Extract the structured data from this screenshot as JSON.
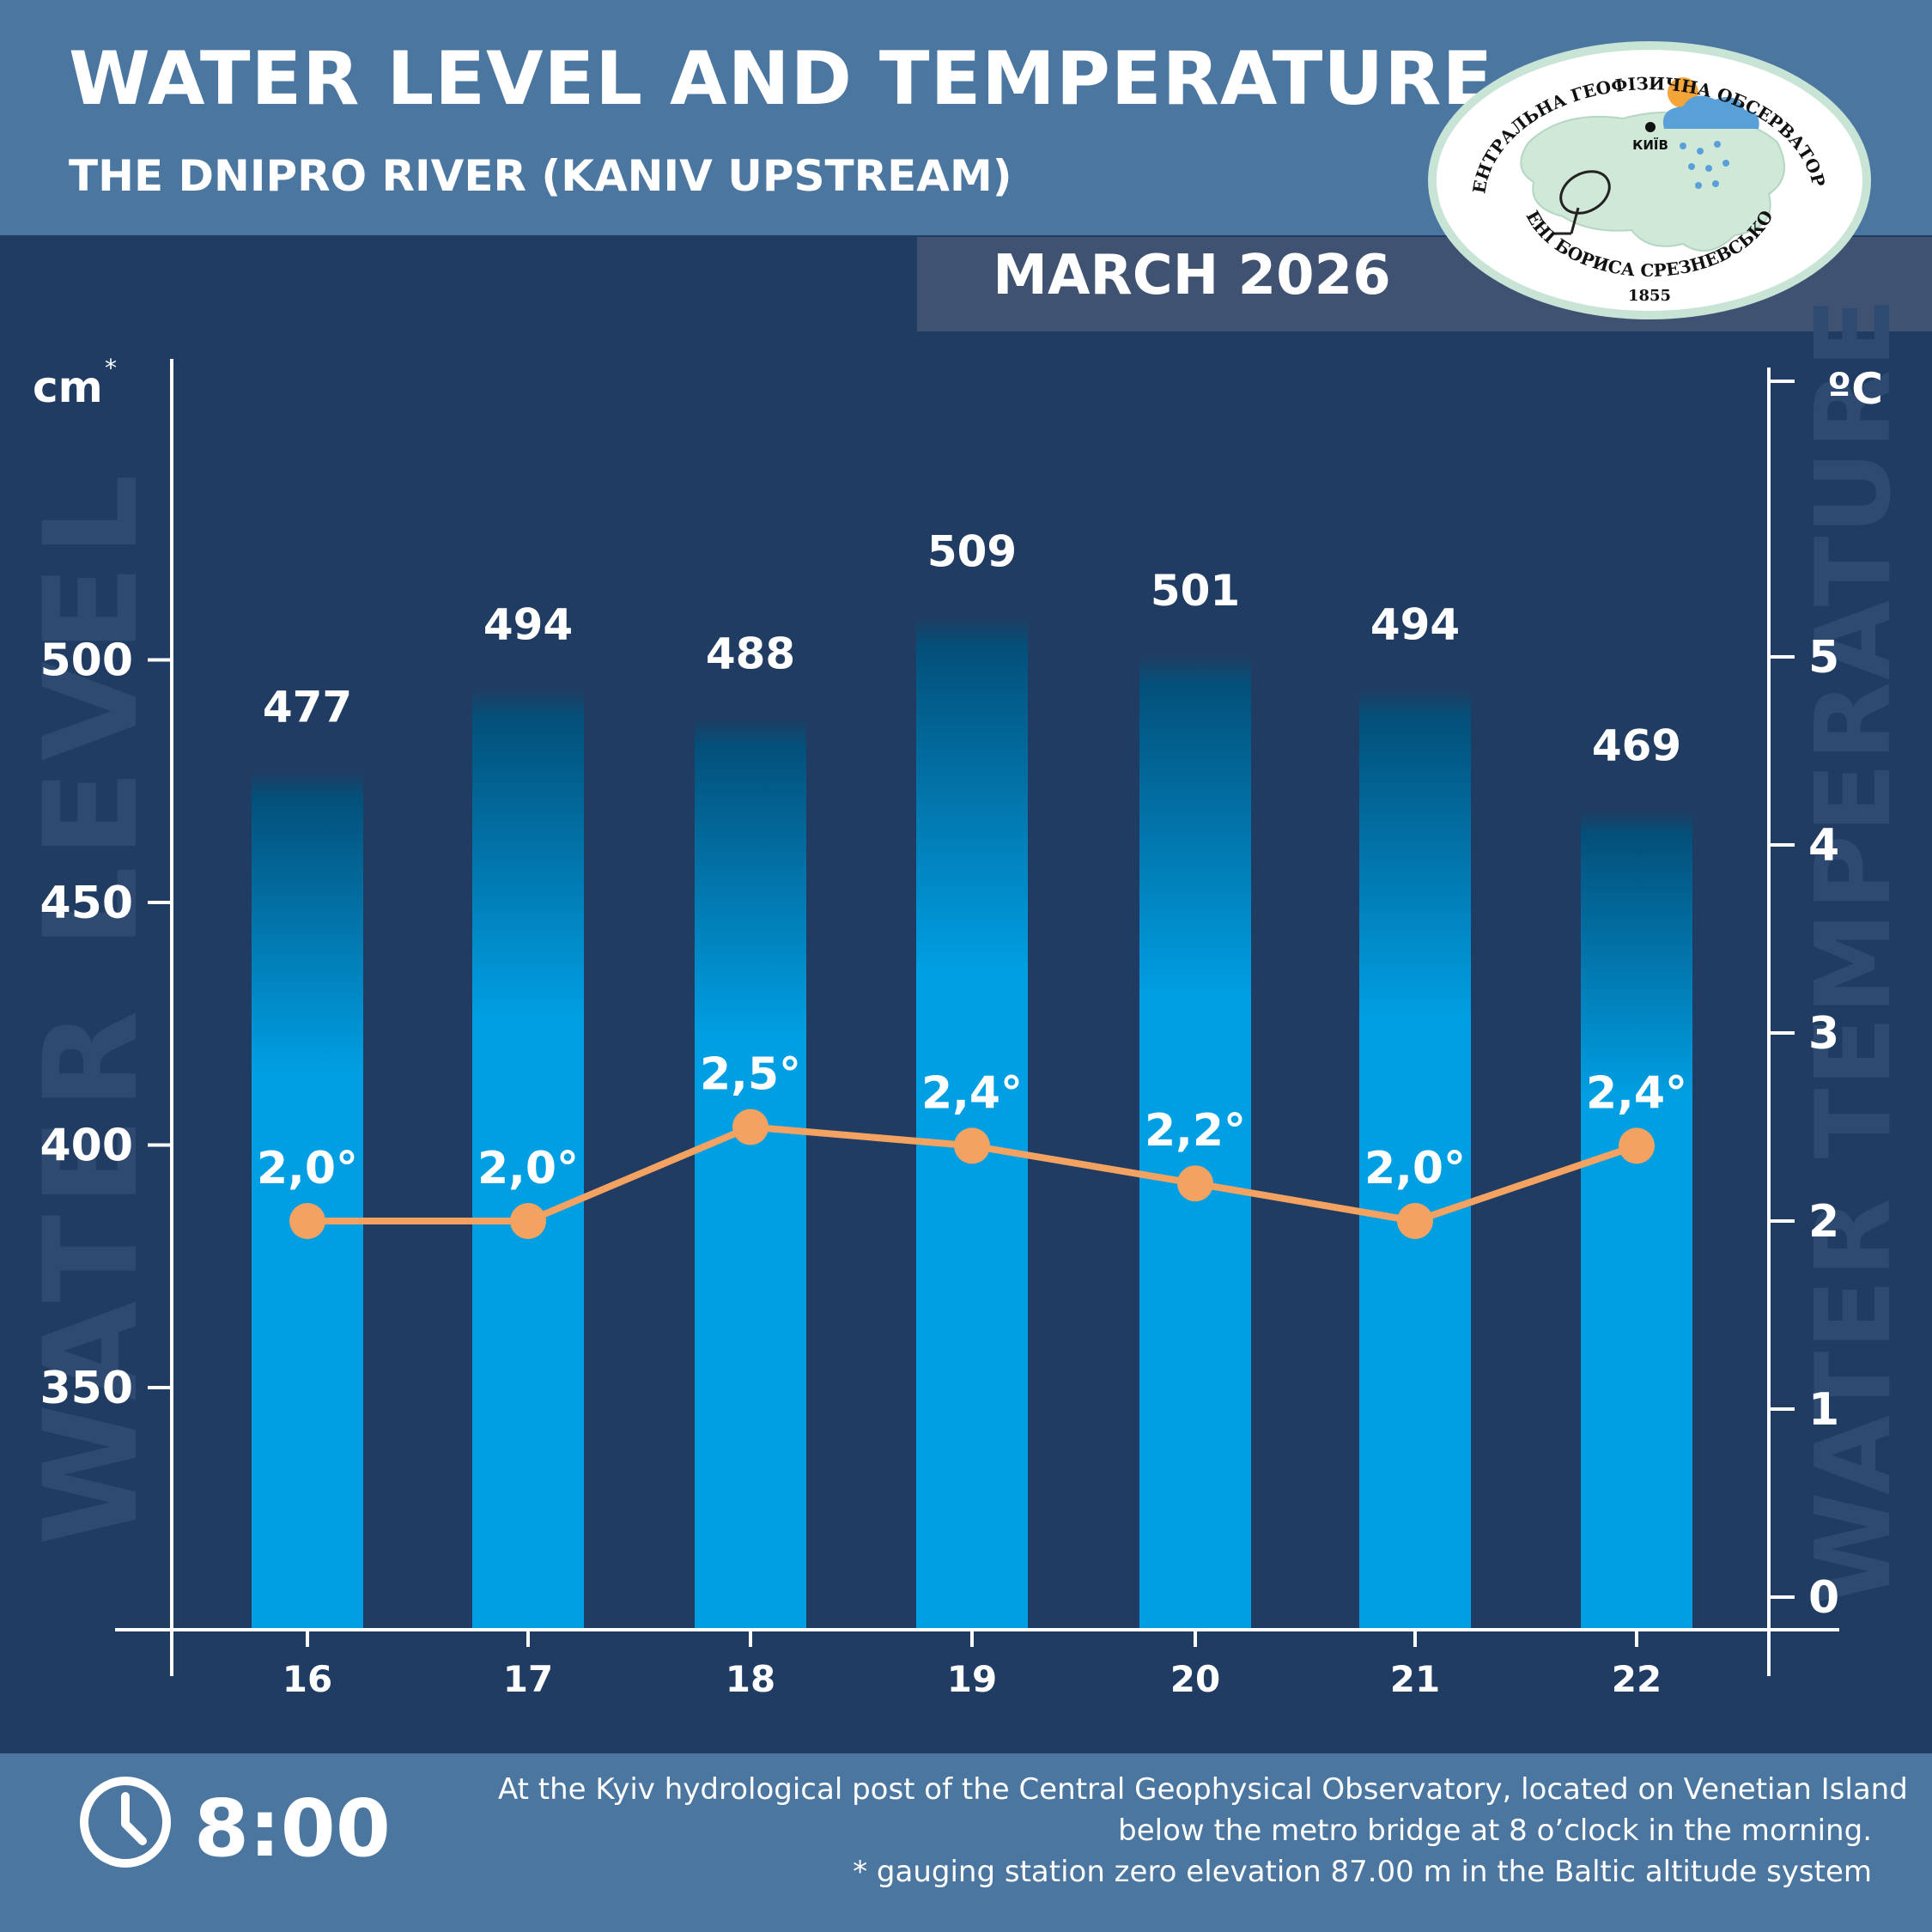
{
  "header": {
    "title": "WATER LEVEL AND TEMPERATURE",
    "subtitle": "THE DNIPRO RIVER (KANIV UPSTREAM)",
    "month": "MARCH 2026"
  },
  "logo": {
    "top_text": "ЦЕНТРАЛЬНА ГЕОФІЗИЧНА ОБСЕРВАТОРІЯ",
    "bottom_text": "ІМЕНІ БОРИСА СРЕЗНЕВСЬКОГО",
    "city": "КИЇВ",
    "year": "1855"
  },
  "footer": {
    "time": "8:00",
    "note_lines": [
      "At the Kyiv hydrological post of the Central Geophysical Observatory, located on Venetian Island",
      "below the metro bridge  at 8 o’clock in the morning.",
      "* gauging station zero elevation 87.00 m in the Baltic altitude system"
    ]
  },
  "colors": {
    "background": "#203c62",
    "header": "#4a76a0",
    "bar_top": "#03507a",
    "bar_bottom": "#009fe3",
    "line": "#f4a261",
    "axis": "#ffffff",
    "watermark": "#2e4a70"
  },
  "chart_data": {
    "type": "bar",
    "categories": [
      "16",
      "17",
      "18",
      "19",
      "20",
      "21",
      "22"
    ],
    "series": [
      {
        "values": [
          477,
          494,
          488,
          509,
          501,
          494,
          469
        ],
        "value_labels": [
          "477",
          "494",
          "488",
          "509",
          "501",
          "494",
          "469"
        ],
        "axis": "left"
      },
      {
        "type": "line",
        "values": [
          2.0,
          2.0,
          2.5,
          2.4,
          2.2,
          2.0,
          2.4
        ],
        "value_labels": [
          "2,0°",
          "2,0°",
          "2,5°",
          "2,4°",
          "2,2°",
          "2,0°",
          "2,4°"
        ],
        "axis": "right"
      }
    ],
    "left_axis": {
      "unit": "cm",
      "unit_mark": "*",
      "watermark": "WATER LEVEL",
      "ticks": [
        350,
        400,
        450,
        500
      ],
      "range": [
        300,
        500
      ]
    },
    "right_axis": {
      "unit": "ºC",
      "watermark": "WATER TEMPERATURE",
      "ticks": [
        0,
        1,
        2,
        3,
        4,
        5
      ],
      "range": [
        0,
        6.3
      ]
    },
    "grid": false
  }
}
